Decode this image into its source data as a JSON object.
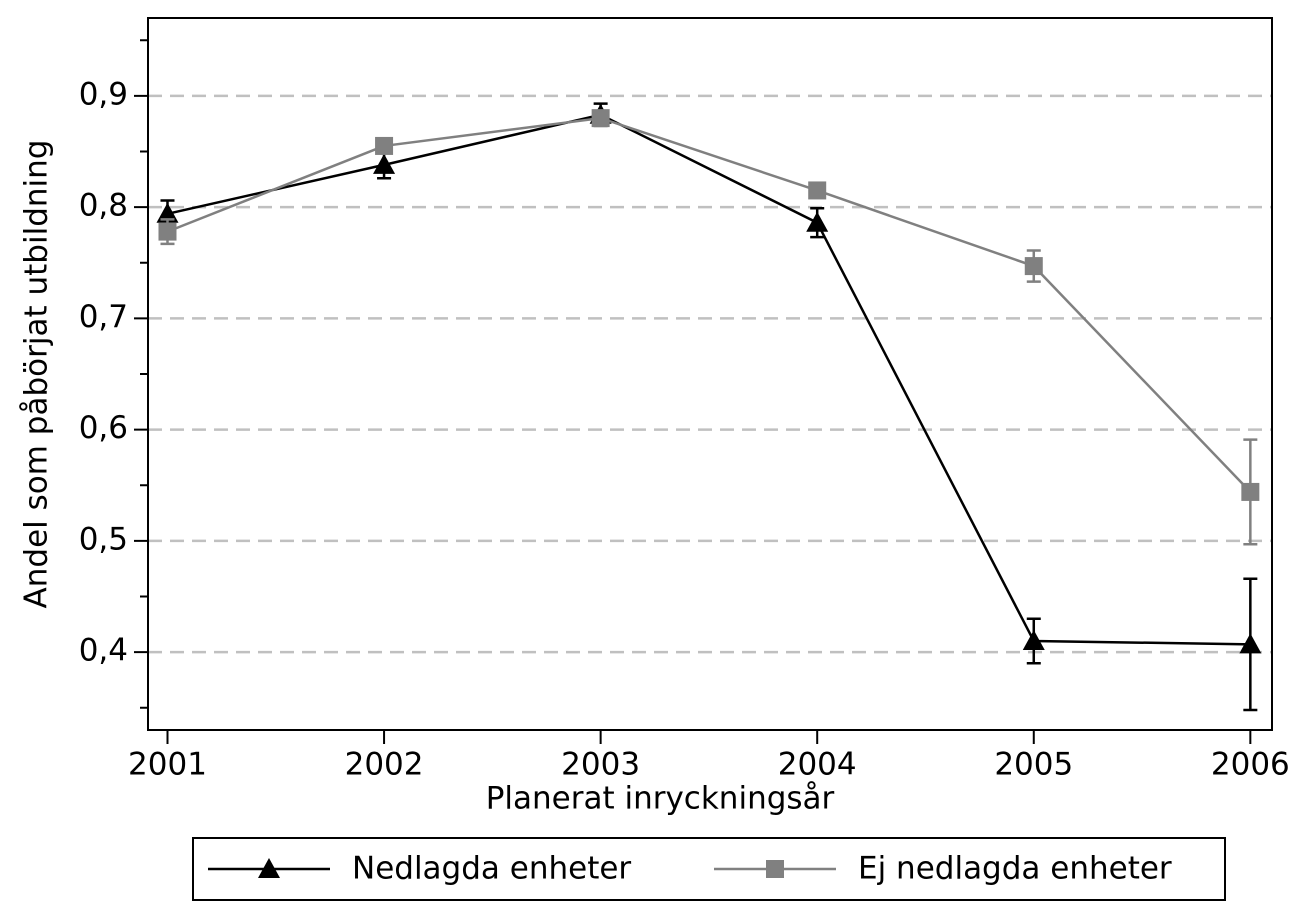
{
  "chart_data": {
    "type": "line",
    "x_label": "Planerat inryckningsår",
    "y_label": "Andel som påbörjat utbildning",
    "x": [
      2001,
      2002,
      2003,
      2004,
      2005,
      2006
    ],
    "xlim": [
      2000.91,
      2006.1
    ],
    "xticks": [
      2001,
      2002,
      2003,
      2004,
      2005,
      2006
    ],
    "ylim": [
      0.33,
      0.97
    ],
    "yticks": [
      {
        "value": 0.4,
        "label": "0,4"
      },
      {
        "value": 0.5,
        "label": "0,5"
      },
      {
        "value": 0.6,
        "label": "0,6"
      },
      {
        "value": 0.7,
        "label": "0,7"
      },
      {
        "value": 0.8,
        "label": "0,8"
      },
      {
        "value": 0.9,
        "label": "0,9"
      }
    ],
    "yminor_ticks": [
      0.35,
      0.45,
      0.55,
      0.65,
      0.75,
      0.85,
      0.95
    ],
    "grid": true,
    "legend": "bottom",
    "series": [
      {
        "name": "Nedlagda enheter",
        "color": "#000000",
        "marker": "triangle",
        "values": [
          0.794,
          0.838,
          0.883,
          0.786,
          0.41,
          0.407
        ],
        "errors": [
          0.012,
          0.012,
          0.01,
          0.013,
          0.02,
          0.059
        ]
      },
      {
        "name": "Ej nedlagda enheter",
        "color": "#808080",
        "marker": "square",
        "values": [
          0.778,
          0.855,
          0.88,
          0.815,
          0.747,
          0.544
        ],
        "errors": [
          0.011,
          0.005,
          0.005,
          0.006,
          0.014,
          0.047
        ]
      }
    ]
  }
}
